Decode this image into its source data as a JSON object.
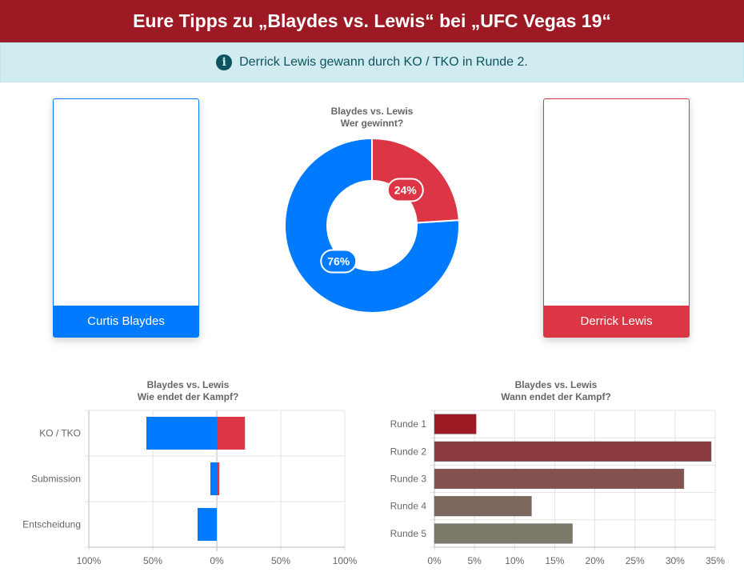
{
  "header": {
    "title": "Eure Tipps zu „Blaydes vs. Lewis“ bei „UFC Vegas 19“"
  },
  "alert": {
    "icon": "info-circle-icon",
    "text": "Derrick Lewis gewann durch KO / TKO in Runde 2."
  },
  "fighters": {
    "left": {
      "name": "Curtis Blaydes",
      "color": "#007bff"
    },
    "right": {
      "name": "Derrick Lewis",
      "color": "#dc3545"
    }
  },
  "chart_data": [
    {
      "id": "winner",
      "type": "pie",
      "title": "Blaydes vs. Lewis",
      "subtitle": "Wer gewinnt?",
      "labels": [
        "Curtis Blaydes",
        "Derrick Lewis"
      ],
      "values": [
        76,
        24
      ],
      "value_labels": [
        "76%",
        "24%"
      ],
      "colors": [
        "#007bff",
        "#dc3545"
      ]
    },
    {
      "id": "method",
      "type": "bar",
      "orientation": "horizontal",
      "stacked": true,
      "title": "Blaydes vs. Lewis",
      "subtitle": "Wie endet der Kampf?",
      "categories": [
        "KO / TKO",
        "Submission",
        "Entscheidung"
      ],
      "series": [
        {
          "values": [
            -55,
            -5,
            -15
          ],
          "color": "#007bff"
        },
        {
          "values": [
            22,
            2,
            0
          ],
          "color": "#dc3545"
        }
      ],
      "xlim": [
        -100,
        100
      ],
      "xticks": [
        -100,
        -50,
        0,
        50,
        100
      ],
      "xtick_labels": [
        "100%",
        "50%",
        "0%",
        "50%",
        "100%"
      ],
      "grid": true
    },
    {
      "id": "round",
      "type": "bar",
      "orientation": "horizontal",
      "title": "Blaydes vs. Lewis",
      "subtitle": "Wann endet der Kampf?",
      "categories": [
        "Runde 1",
        "Runde 2",
        "Runde 3",
        "Runde 4",
        "Runde 5"
      ],
      "values": [
        5.2,
        34.5,
        31.1,
        12.1,
        17.2
      ],
      "colors": [
        "#9d1a25",
        "#8b3a3f",
        "#85534f",
        "#7c665d",
        "#7b7a6a"
      ],
      "xlim": [
        0,
        35
      ],
      "xticks": [
        0,
        5,
        10,
        15,
        20,
        25,
        30,
        35
      ],
      "xtick_labels": [
        "0%",
        "5%",
        "10%",
        "15%",
        "20%",
        "25%",
        "30%",
        "35%"
      ],
      "grid": true
    }
  ]
}
